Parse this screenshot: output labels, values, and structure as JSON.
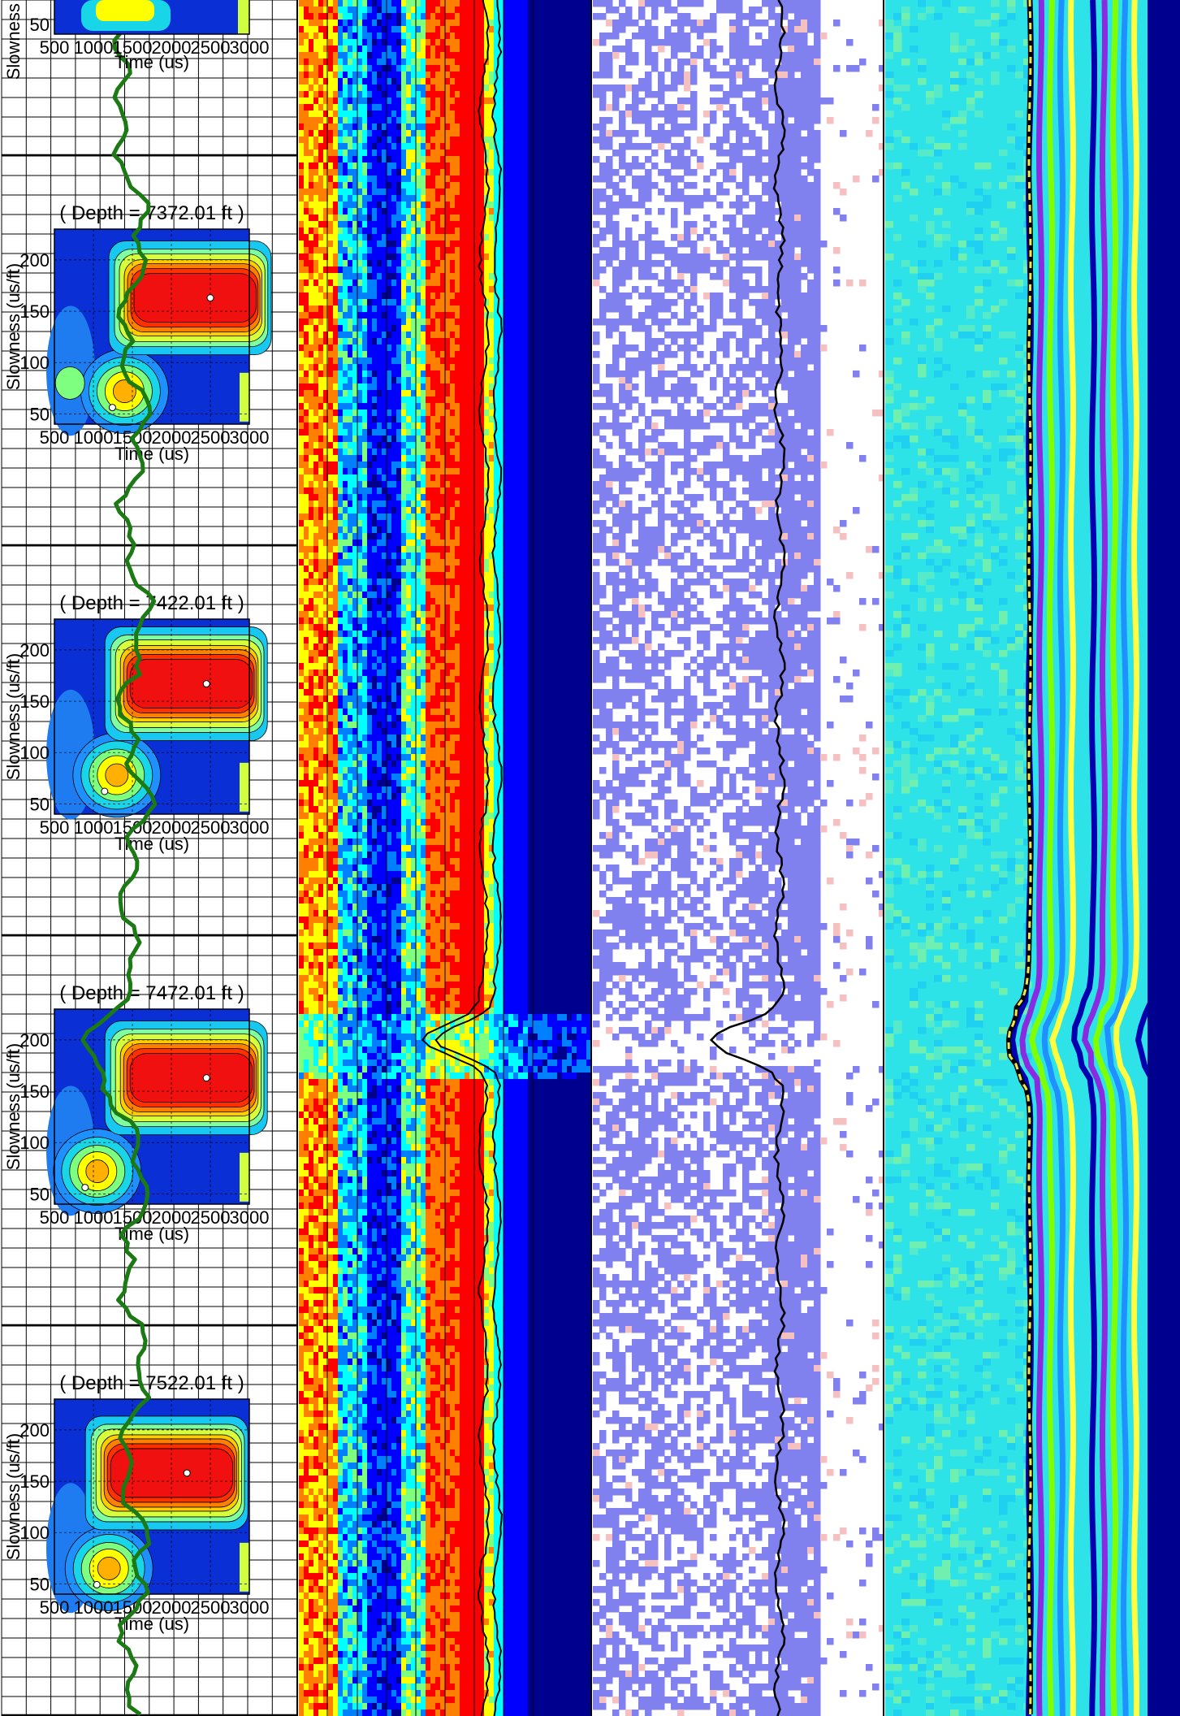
{
  "panels": [
    {
      "depth_label": "( Depth = 7372.01 ft )",
      "peak1": {
        "time": 2500,
        "slowness": 163
      },
      "peak2": {
        "time": 1400,
        "slowness": 72
      },
      "ghost": {
        "time": 700,
        "slowness": 80
      }
    },
    {
      "depth_label": "( Depth = 7422.01 ft )",
      "peak1": {
        "time": 2450,
        "slowness": 167
      },
      "peak2": {
        "time": 1300,
        "slowness": 78
      },
      "ghost": null
    },
    {
      "depth_label": "( Depth = 7472.01 ft )",
      "peak1": {
        "time": 2450,
        "slowness": 163
      },
      "peak2": {
        "time": 1050,
        "slowness": 72
      },
      "ghost": null
    },
    {
      "depth_label": "( Depth = 7522.01 ft )",
      "peak1": {
        "time": 2200,
        "slowness": 158
      },
      "peak2": {
        "time": 1200,
        "slowness": 65
      },
      "ghost": null
    }
  ],
  "axes": {
    "xlabel": "Time (us)",
    "ylabel": "Slowness (us/ft)",
    "xticks": [
      "500",
      "1000",
      "1500",
      "2000",
      "2500",
      "3000"
    ],
    "yticks": [
      "200",
      "150",
      "100",
      "50"
    ]
  },
  "top_partial": {
    "ytick": "50",
    "xticks": [
      "500",
      "1000",
      "1500",
      "2000",
      "2500",
      "3000"
    ],
    "xlabel": "Time (us)",
    "ylabel": "Slowness (us/ft)"
  },
  "colors": {
    "log_curve": "#1b7a14",
    "trace": "#000000",
    "projection_colormap": [
      "#00008f",
      "#0000ff",
      "#007fff",
      "#00ffff",
      "#7fff7f",
      "#ffff00",
      "#ff7f00",
      "#ff0000"
    ],
    "sparse_blue": "#8080ee",
    "sparse_pink": "#f5c0c0",
    "waveform_base": "#2ee3e8",
    "dashed_pick": "#f2e64b"
  },
  "chart_data": {
    "type": "heatmap",
    "title": "",
    "depth_range_ft": [
      7322.01,
      7572.01
    ],
    "event_depth_ft": 7478.01,
    "panel_depths_ft": [
      7372.01,
      7422.01,
      7472.01,
      7522.01
    ],
    "slowness_range": [
      40,
      230
    ],
    "time_range": [
      500,
      3000
    ]
  }
}
